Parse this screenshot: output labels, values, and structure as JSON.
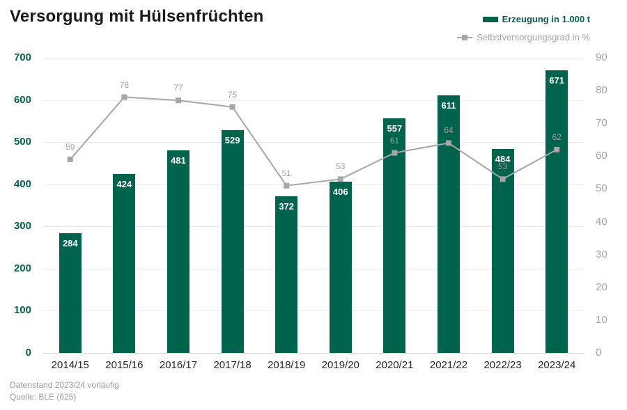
{
  "chart_data": {
    "type": "bar",
    "title": "Versorgung mit Hülsenfrüchten",
    "categories": [
      "2014/15",
      "2015/16",
      "2016/17",
      "2017/18",
      "2018/19",
      "2019/20",
      "2020/21",
      "2021/22",
      "2022/23",
      "2023/24"
    ],
    "series": [
      {
        "name": "Erzeugung in 1.000 t",
        "type": "bar",
        "axis": "left",
        "values": [
          284,
          424,
          481,
          529,
          372,
          406,
          557,
          611,
          484,
          671
        ]
      },
      {
        "name": "Selbstversorgungsgrad in %",
        "type": "line",
        "axis": "right",
        "values": [
          59,
          78,
          77,
          75,
          51,
          53,
          61,
          64,
          53,
          62
        ]
      }
    ],
    "left_axis": {
      "min": 0,
      "max": 700,
      "ticks": [
        0,
        100,
        200,
        300,
        400,
        500,
        600,
        700
      ]
    },
    "right_axis": {
      "min": 0,
      "max": 90,
      "ticks": [
        0,
        10,
        20,
        30,
        40,
        50,
        60,
        70,
        80,
        90
      ]
    },
    "grid": true,
    "legend_position": "top-right",
    "data_labels": true
  },
  "legend": {
    "bar_label": "Erzeugung in 1.000 t",
    "line_label": "Selbstversorgungsgrad in %"
  },
  "footer": {
    "line1": "Datenstand 2023/24 vorläufig",
    "line2": "Quelle: BLE (625)"
  },
  "colors": {
    "bar": "#00634c",
    "line": "#a6a6a6",
    "left_axis_text": "#00634c",
    "right_axis_text": "#a3a3a3",
    "grid": "#ececec",
    "zero_line": "#d6d6d6",
    "title_text": "#1a1a1a",
    "footer_text": "#9b9b9b",
    "background": "#ffffff"
  }
}
